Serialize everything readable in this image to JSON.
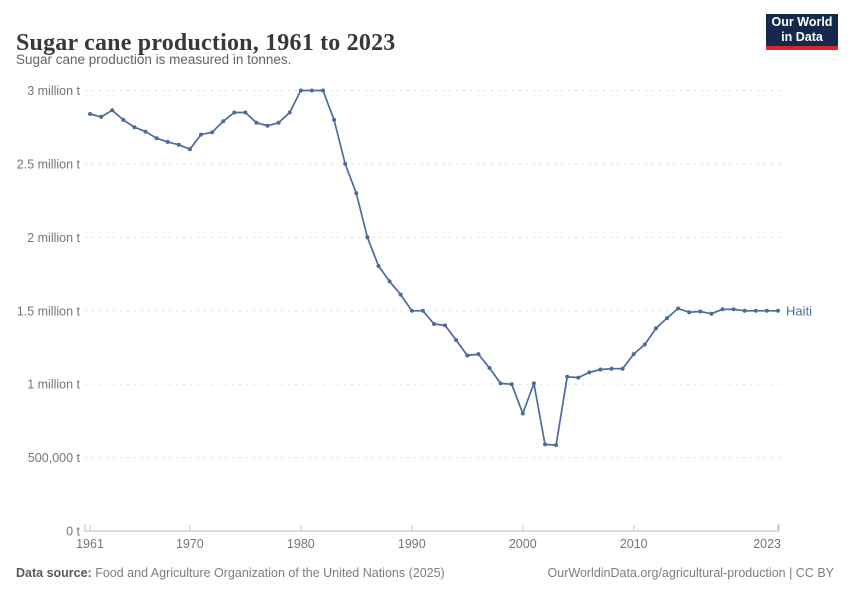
{
  "header": {
    "title": "Sugar cane production, 1961 to 2023",
    "subtitle": "Sugar cane production is measured in tonnes."
  },
  "logo": {
    "line1": "Our World",
    "line2": "in Data",
    "bg_color": "#14294b",
    "bar_color": "#e0232b"
  },
  "chart_data": {
    "type": "line",
    "title": "Sugar cane production, 1961 to 2023",
    "unit": "tonnes",
    "xlim": [
      1961,
      2023
    ],
    "ylim": [
      0,
      3000000
    ],
    "grid": "horizontal-dashed",
    "legend_position": "end-of-line-label",
    "x_ticks": [
      1961,
      1970,
      1980,
      1990,
      2000,
      2010,
      2023
    ],
    "y_ticks": [
      {
        "value": 0,
        "label": "0 t"
      },
      {
        "value": 500000,
        "label": "500,000 t"
      },
      {
        "value": 1000000,
        "label": "1 million t"
      },
      {
        "value": 1500000,
        "label": "1.5 million t"
      },
      {
        "value": 2000000,
        "label": "2 million t"
      },
      {
        "value": 2500000,
        "label": "2.5 million t"
      },
      {
        "value": 3000000,
        "label": "3 million t"
      }
    ],
    "x": [
      1961,
      1962,
      1963,
      1964,
      1965,
      1966,
      1967,
      1968,
      1969,
      1970,
      1971,
      1972,
      1973,
      1974,
      1975,
      1976,
      1977,
      1978,
      1979,
      1980,
      1981,
      1982,
      1983,
      1984,
      1985,
      1986,
      1987,
      1988,
      1989,
      1990,
      1991,
      1992,
      1993,
      1994,
      1995,
      1996,
      1997,
      1998,
      1999,
      2000,
      2001,
      2002,
      2003,
      2004,
      2005,
      2006,
      2007,
      2008,
      2009,
      2010,
      2011,
      2012,
      2013,
      2014,
      2015,
      2016,
      2017,
      2018,
      2019,
      2020,
      2021,
      2022,
      2023
    ],
    "series": [
      {
        "name": "Haiti",
        "color": "#4c6a9c",
        "values": [
          2840000,
          2820000,
          2865000,
          2800000,
          2750000,
          2720000,
          2675000,
          2650000,
          2630000,
          2600000,
          2700000,
          2715000,
          2790000,
          2850000,
          2850000,
          2780000,
          2760000,
          2780000,
          2850000,
          3000000,
          3000000,
          3000000,
          2800000,
          2500000,
          2300000,
          2000000,
          1805000,
          1700000,
          1610000,
          1500000,
          1500000,
          1410000,
          1400000,
          1300000,
          1195000,
          1205000,
          1110000,
          1005000,
          1000000,
          800000,
          1005000,
          590000,
          585000,
          1050000,
          1045000,
          1080000,
          1100000,
          1105000,
          1105000,
          1205000,
          1270000,
          1380000,
          1450000,
          1515000,
          1490000,
          1495000,
          1480000,
          1510000,
          1510000,
          1500000,
          1500000,
          1500000,
          1500000
        ]
      }
    ]
  },
  "footer": {
    "datasource_label": "Data source:",
    "datasource": " Food and Agriculture Organization of the United Nations (2025)",
    "credit": "OurWorldinData.org/agricultural-production | CC BY"
  }
}
